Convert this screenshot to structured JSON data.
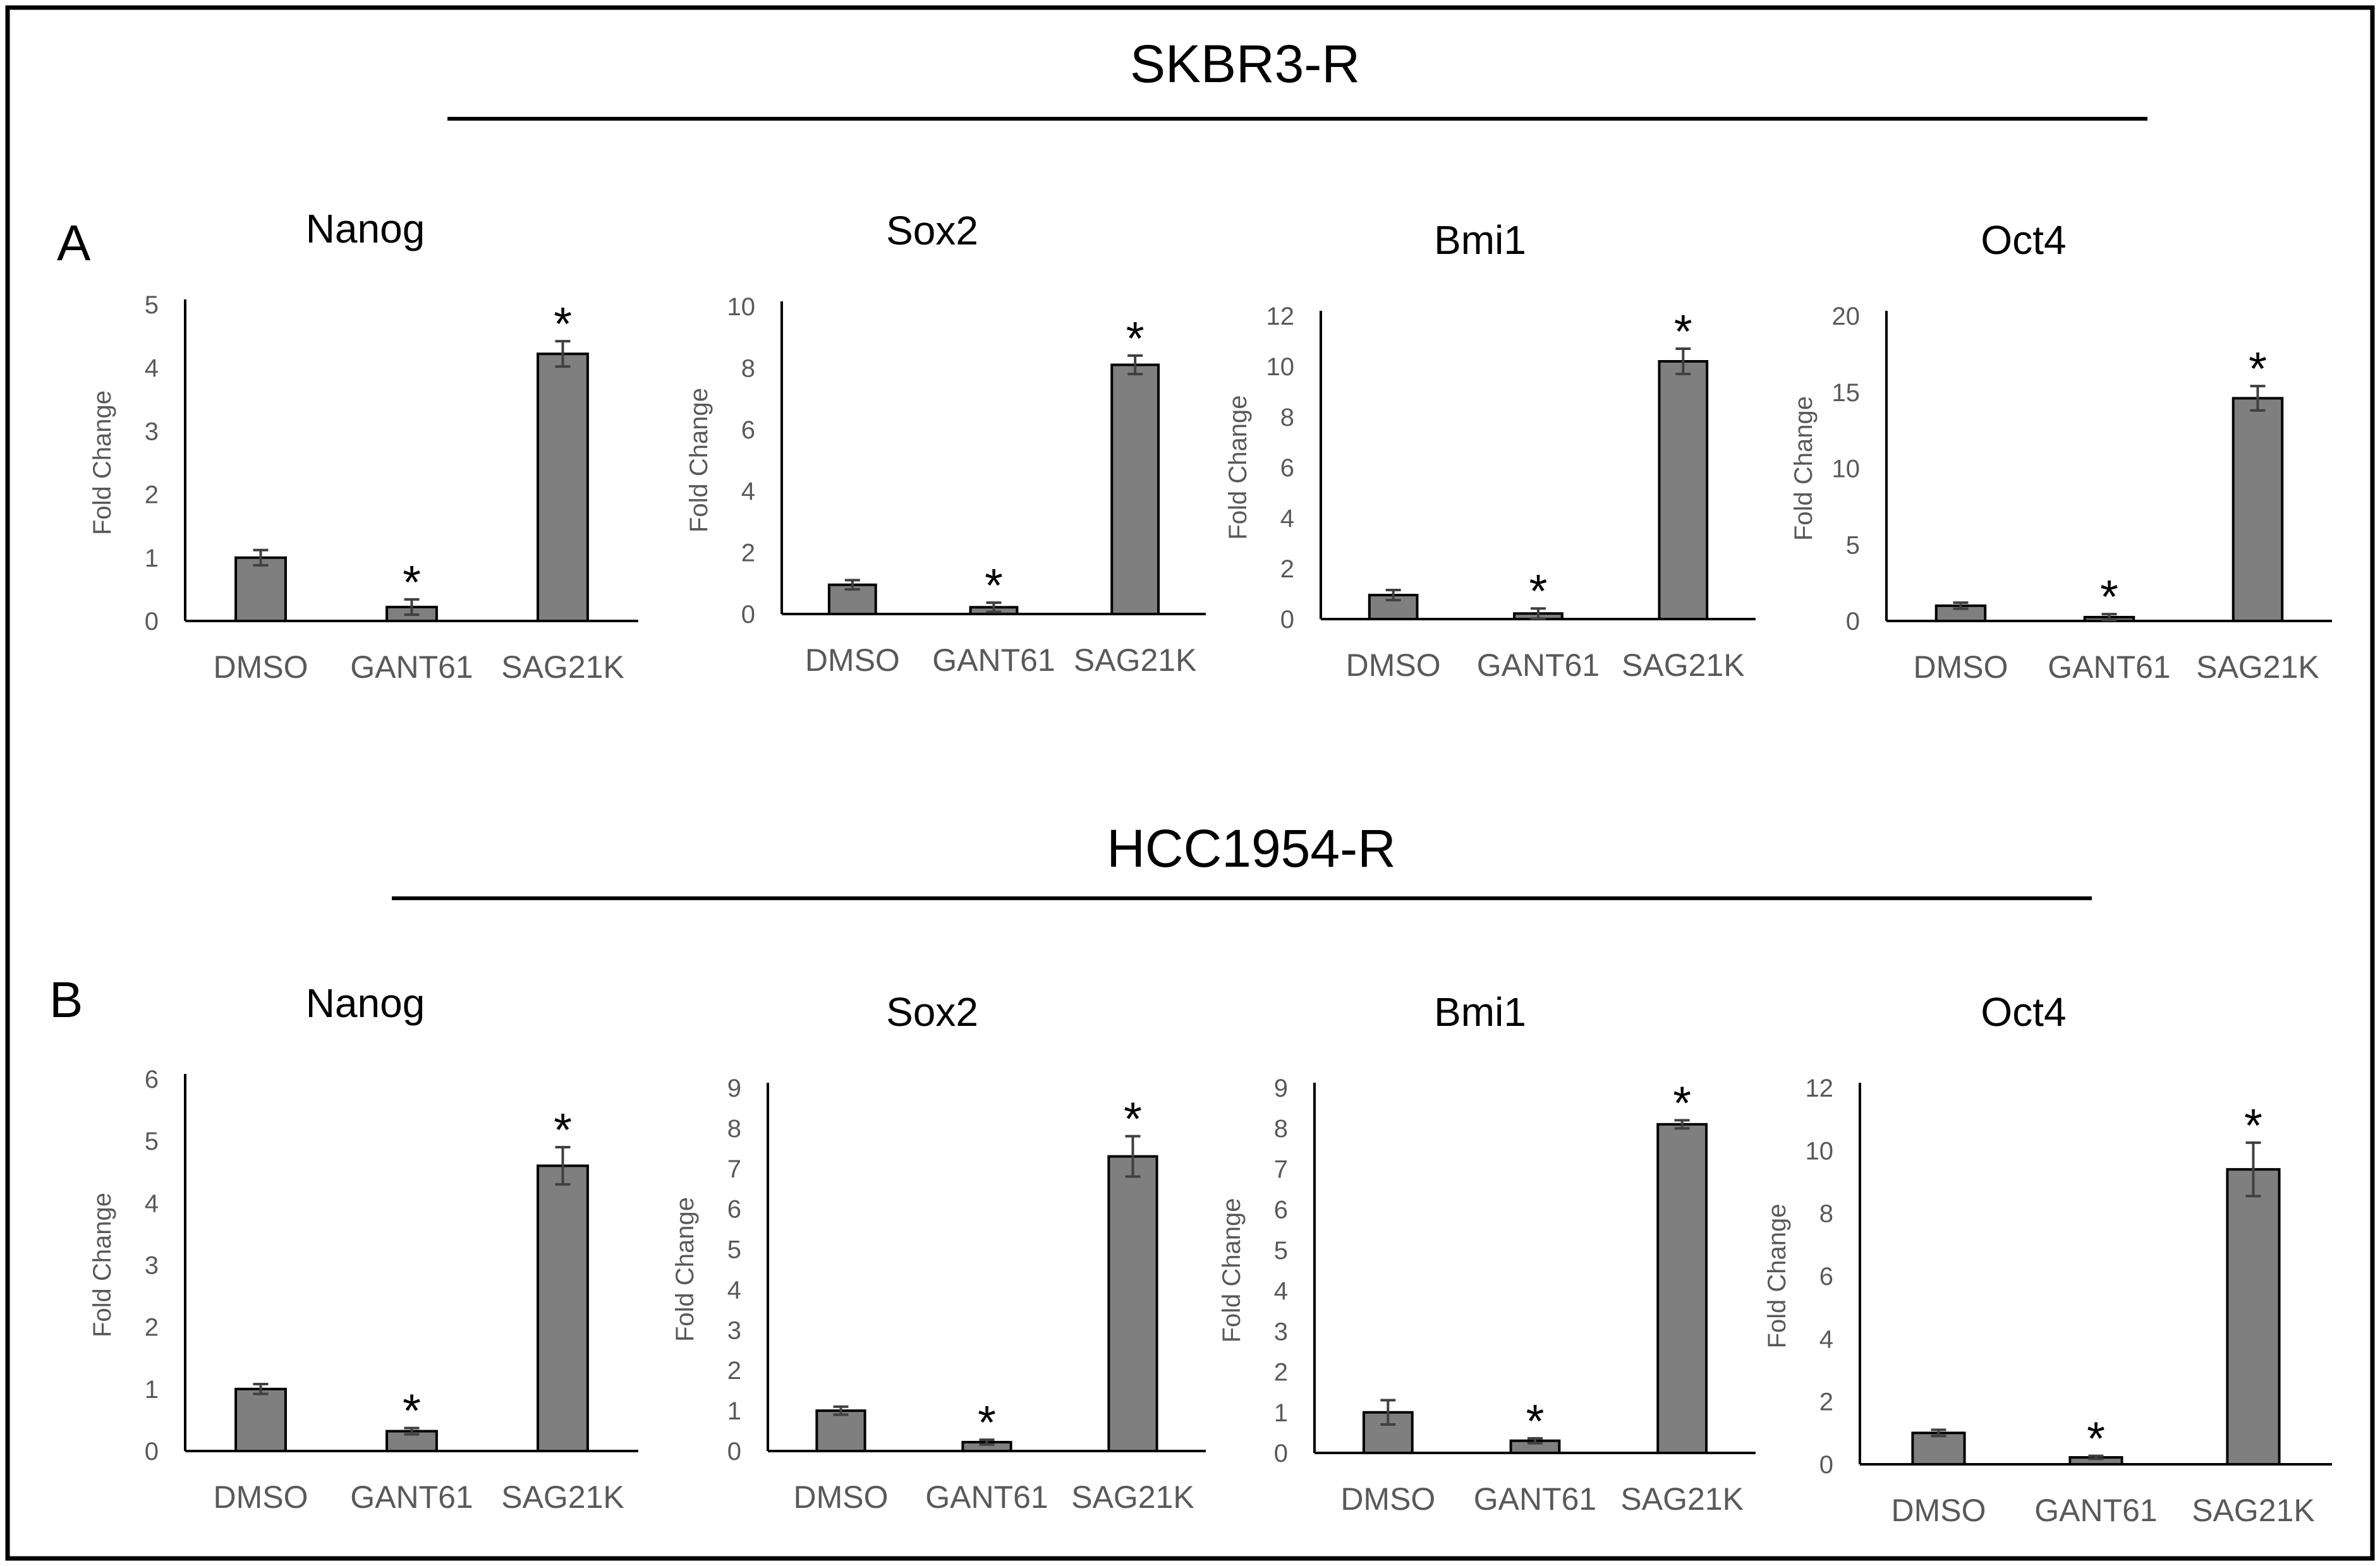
{
  "figure": {
    "groups": [
      {
        "title": "SKBR3-R",
        "panel": "A"
      },
      {
        "title": "HCC1954-R",
        "panel": "B"
      }
    ]
  },
  "colors": {
    "bar": "#7f7f7f",
    "bar_outline": "#000000",
    "error": "#404040",
    "axis": "#000000",
    "tick_text": "#595959"
  },
  "chart_data": [
    {
      "type": "bar",
      "group": "SKBR3-R",
      "title": "Nanog",
      "ylabel": "Fold Change",
      "categories": [
        "DMSO",
        "GANT61",
        "SAG21K"
      ],
      "values": [
        1.0,
        0.22,
        4.22
      ],
      "errors": [
        0.12,
        0.12,
        0.2
      ],
      "significant": [
        false,
        true,
        true
      ],
      "ylim": [
        0,
        5
      ],
      "yticks": [
        0,
        1,
        2,
        3,
        4,
        5
      ],
      "grid": false,
      "legend": "none"
    },
    {
      "type": "bar",
      "group": "SKBR3-R",
      "title": "Sox2",
      "ylabel": "Fold Change",
      "categories": [
        "DMSO",
        "GANT61",
        "SAG21K"
      ],
      "values": [
        0.95,
        0.22,
        8.1
      ],
      "errors": [
        0.15,
        0.15,
        0.3
      ],
      "significant": [
        false,
        true,
        true
      ],
      "ylim": [
        0,
        10
      ],
      "yticks": [
        0,
        2,
        4,
        6,
        8,
        10
      ],
      "grid": false,
      "legend": "none"
    },
    {
      "type": "bar",
      "group": "SKBR3-R",
      "title": "Bmi1",
      "ylabel": "Fold Change",
      "categories": [
        "DMSO",
        "GANT61",
        "SAG21K"
      ],
      "values": [
        0.95,
        0.22,
        10.2
      ],
      "errors": [
        0.2,
        0.2,
        0.5
      ],
      "significant": [
        false,
        true,
        true
      ],
      "ylim": [
        0,
        12
      ],
      "yticks": [
        0,
        2,
        4,
        6,
        8,
        10,
        12
      ],
      "grid": false,
      "legend": "none"
    },
    {
      "type": "bar",
      "group": "SKBR3-R",
      "title": "Oct4",
      "ylabel": "Fold Change",
      "categories": [
        "DMSO",
        "GANT61",
        "SAG21K"
      ],
      "values": [
        1.0,
        0.25,
        14.6
      ],
      "errors": [
        0.2,
        0.2,
        0.8
      ],
      "significant": [
        false,
        true,
        true
      ],
      "ylim": [
        0,
        20
      ],
      "yticks": [
        0,
        5,
        10,
        15,
        20
      ],
      "grid": false,
      "legend": "none"
    },
    {
      "type": "bar",
      "group": "HCC1954-R",
      "title": "Nanog",
      "ylabel": "Fold Change",
      "categories": [
        "DMSO",
        "GANT61",
        "SAG21K"
      ],
      "values": [
        1.0,
        0.32,
        4.6
      ],
      "errors": [
        0.08,
        0.05,
        0.3
      ],
      "significant": [
        false,
        true,
        true
      ],
      "ylim": [
        0,
        6
      ],
      "yticks": [
        0,
        1,
        2,
        3,
        4,
        5,
        6
      ],
      "grid": false,
      "legend": "none"
    },
    {
      "type": "bar",
      "group": "HCC1954-R",
      "title": "Sox2",
      "ylabel": "Fold Change",
      "categories": [
        "DMSO",
        "GANT61",
        "SAG21K"
      ],
      "values": [
        1.0,
        0.22,
        7.3
      ],
      "errors": [
        0.1,
        0.06,
        0.5
      ],
      "significant": [
        false,
        true,
        true
      ],
      "ylim": [
        0,
        9
      ],
      "yticks": [
        0,
        1,
        2,
        3,
        4,
        5,
        6,
        7,
        8,
        9
      ],
      "grid": false,
      "legend": "none"
    },
    {
      "type": "bar",
      "group": "HCC1954-R",
      "title": "Bmi1",
      "ylabel": "Fold Change",
      "categories": [
        "DMSO",
        "GANT61",
        "SAG21K"
      ],
      "values": [
        1.0,
        0.3,
        8.1
      ],
      "errors": [
        0.3,
        0.06,
        0.1
      ],
      "significant": [
        false,
        true,
        true
      ],
      "ylim": [
        0,
        9
      ],
      "yticks": [
        0,
        1,
        2,
        3,
        4,
        5,
        6,
        7,
        8,
        9
      ],
      "grid": false,
      "legend": "none"
    },
    {
      "type": "bar",
      "group": "HCC1954-R",
      "title": "Oct4",
      "ylabel": "Fold Change",
      "categories": [
        "DMSO",
        "GANT61",
        "SAG21K"
      ],
      "values": [
        1.0,
        0.22,
        9.4
      ],
      "errors": [
        0.1,
        0.05,
        0.85
      ],
      "significant": [
        false,
        true,
        true
      ],
      "ylim": [
        0,
        12
      ],
      "yticks": [
        0,
        2,
        4,
        6,
        8,
        10,
        12
      ],
      "grid": false,
      "legend": "none"
    }
  ],
  "significance_mark": "*"
}
